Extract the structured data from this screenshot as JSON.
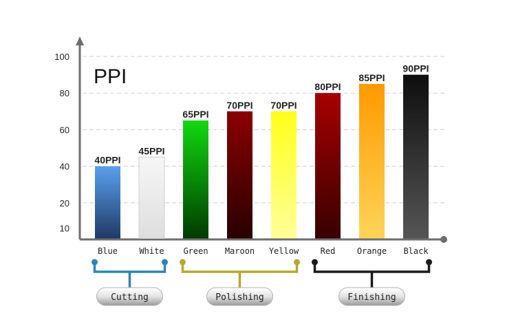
{
  "chart_data": {
    "type": "bar",
    "title": "PPI",
    "categories": [
      "Blue",
      "White",
      "Green",
      "Maroon",
      "Yellow",
      "Red",
      "Orange",
      "Black"
    ],
    "values": [
      40,
      45,
      65,
      70,
      70,
      80,
      85,
      90
    ],
    "data_labels": [
      "40PPI",
      "45PPI",
      "65PPI",
      "70PPI",
      "70PPI",
      "80PPI",
      "85PPI",
      "90PPI"
    ],
    "yticks": [
      10,
      20,
      40,
      60,
      80,
      100
    ],
    "ylim": [
      0,
      100
    ],
    "grid": true,
    "bar_colors": [
      [
        "#5aa0ee",
        "#1e3a66"
      ],
      [
        "#f6f6f6",
        "#dedede"
      ],
      [
        "#12d812",
        "#003b00"
      ],
      [
        "#8c0000",
        "#280000"
      ],
      [
        "#ffff1a",
        "#ffff99"
      ],
      [
        "#a80000",
        "#380000"
      ],
      [
        "#ff9a00",
        "#ffd458"
      ],
      [
        "#0e0e0e",
        "#555555"
      ]
    ],
    "groups": [
      {
        "label": "Cutting",
        "from": 0,
        "to": 1,
        "color": "#2a86b8"
      },
      {
        "label": "Polishing",
        "from": 2,
        "to": 4,
        "color": "#b5aa2a"
      },
      {
        "label": "Finishing",
        "from": 5,
        "to": 7,
        "color": "#1a1a1a"
      }
    ]
  }
}
